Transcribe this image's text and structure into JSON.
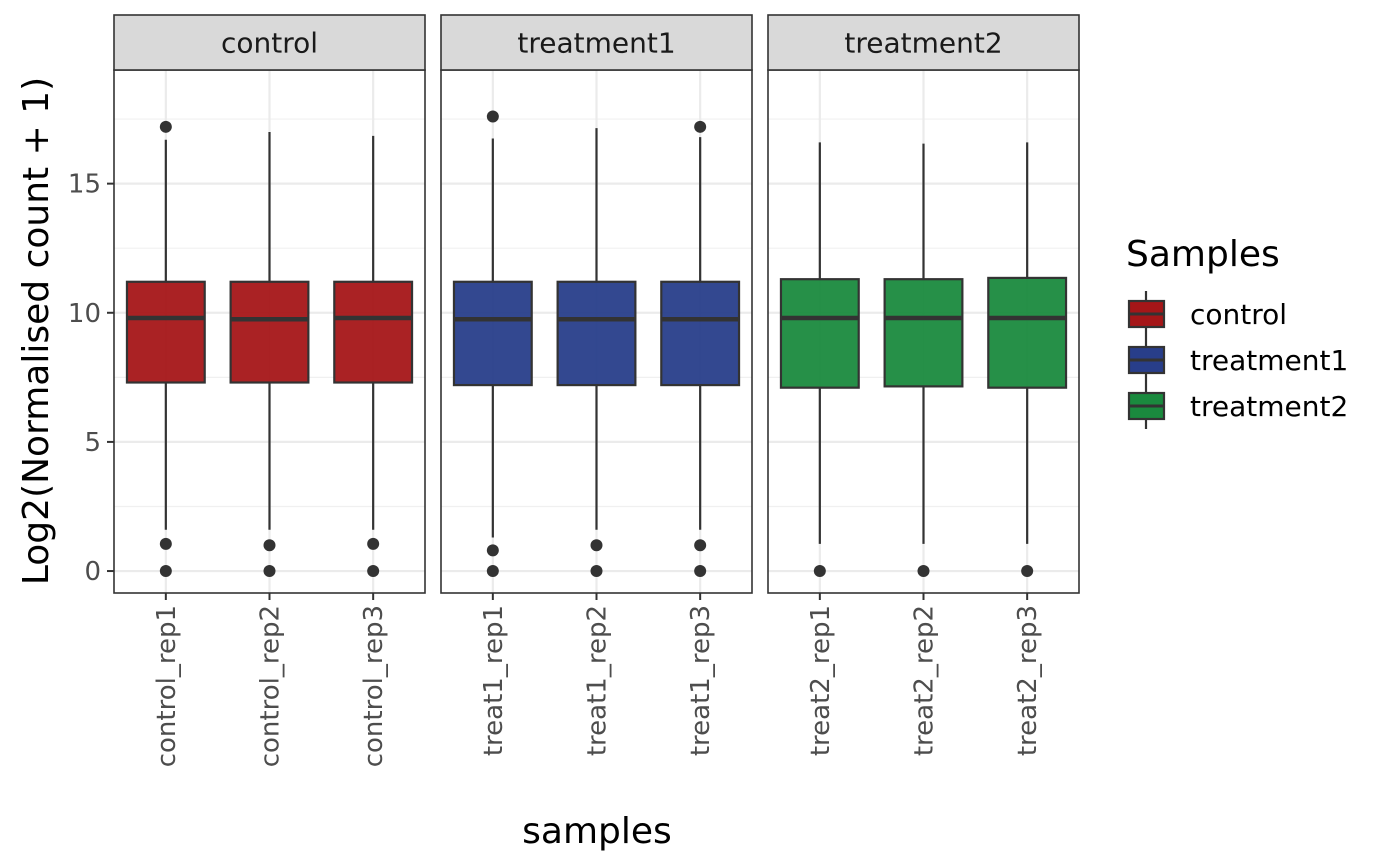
{
  "chart_data": {
    "type": "boxplot",
    "ylabel": "Log2(Normalised count + 1)",
    "xlabel": "samples",
    "ylim": [
      -0.85,
      19.4
    ],
    "yticks": [
      0,
      5,
      10,
      15
    ],
    "grid": true,
    "legend": {
      "title": "Samples",
      "position": "right"
    },
    "facets": [
      {
        "name": "control",
        "color": "#A51618",
        "samples": [
          {
            "label": "control_rep1",
            "min": 1.6,
            "q1": 7.3,
            "median": 9.8,
            "q3": 11.2,
            "max": 16.7,
            "outliers": [
              17.2,
              1.05,
              0
            ]
          },
          {
            "label": "control_rep2",
            "min": 1.6,
            "q1": 7.3,
            "median": 9.75,
            "q3": 11.2,
            "max": 17.0,
            "outliers": [
              1.0,
              0
            ]
          },
          {
            "label": "control_rep3",
            "min": 1.6,
            "q1": 7.3,
            "median": 9.8,
            "q3": 11.2,
            "max": 16.85,
            "outliers": [
              1.05,
              0
            ]
          }
        ]
      },
      {
        "name": "treatment1",
        "color": "#283E8A",
        "samples": [
          {
            "label": "treat1_rep1",
            "min": 1.3,
            "q1": 7.2,
            "median": 9.75,
            "q3": 11.2,
            "max": 16.75,
            "outliers": [
              17.6,
              0.8,
              0
            ]
          },
          {
            "label": "treat1_rep2",
            "min": 1.6,
            "q1": 7.2,
            "median": 9.75,
            "q3": 11.2,
            "max": 17.15,
            "outliers": [
              1.0,
              0
            ]
          },
          {
            "label": "treat1_rep3",
            "min": 1.6,
            "q1": 7.2,
            "median": 9.75,
            "q3": 11.2,
            "max": 16.8,
            "outliers": [
              17.2,
              1.0,
              0
            ]
          }
        ]
      },
      {
        "name": "treatment2",
        "color": "#1A8A3E",
        "samples": [
          {
            "label": "treat2_rep1",
            "min": 1.05,
            "q1": 7.1,
            "median": 9.8,
            "q3": 11.3,
            "max": 16.6,
            "outliers": [
              0
            ]
          },
          {
            "label": "treat2_rep2",
            "min": 1.05,
            "q1": 7.15,
            "median": 9.8,
            "q3": 11.3,
            "max": 16.55,
            "outliers": [
              0
            ]
          },
          {
            "label": "treat2_rep3",
            "min": 1.05,
            "q1": 7.1,
            "median": 9.8,
            "q3": 11.35,
            "max": 16.6,
            "outliers": [
              0
            ]
          }
        ]
      }
    ]
  }
}
